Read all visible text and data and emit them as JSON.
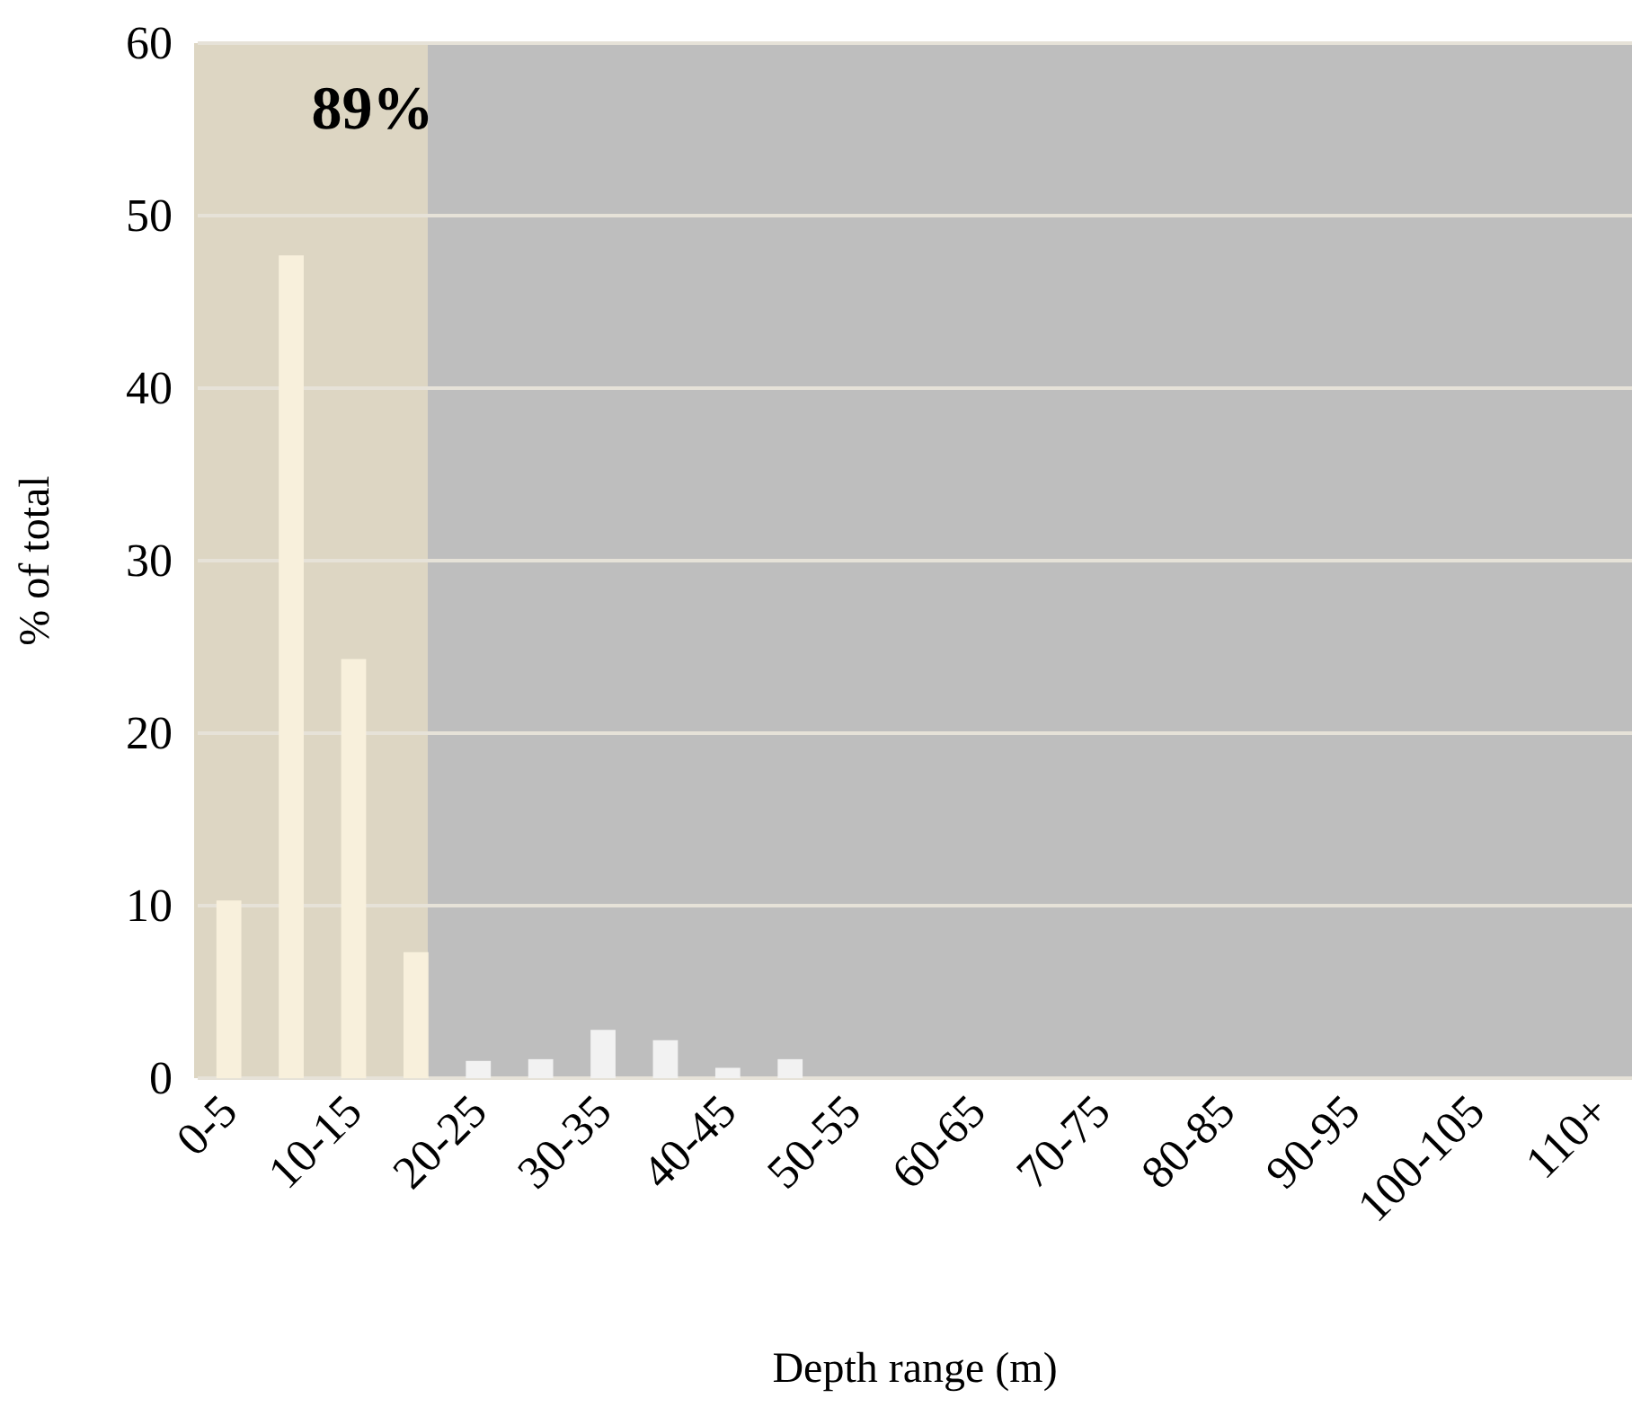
{
  "chart_data": {
    "type": "bar",
    "xlabel": "Depth range (m)",
    "ylabel": "% of total",
    "categories": [
      "0-5",
      null,
      "10-15",
      null,
      "20-25",
      null,
      "30-35",
      null,
      "40-45",
      null,
      "50-55",
      null,
      "60-65",
      null,
      "70-75",
      null,
      "80-85",
      null,
      "90-95",
      null,
      "100-105",
      null,
      "110+"
    ],
    "values": [
      10.3,
      47.7,
      24.3,
      7.3,
      1.0,
      1.1,
      2.8,
      2.2,
      0.6,
      1.1,
      0,
      0,
      0,
      0,
      0,
      0,
      0,
      0,
      0,
      0,
      null,
      0,
      0
    ],
    "colors": [
      "#f8f0dc",
      "#f8f0dc",
      "#f8f0dc",
      "#f8f0dc",
      "#f2f2f2",
      "#f2f2f2",
      "#f2f2f2",
      "#f2f2f2",
      "#f2f2f2",
      "#f2f2f2",
      "#f2f2f2",
      "#f2f2f2",
      "#f2f2f2",
      "#f2f2f2",
      "#f2f2f2",
      "#f2f2f2",
      "#f2f2f2",
      "#f2f2f2",
      "#f2f2f2",
      "#f2f2f2",
      "#f2f2f2",
      "#f2f2f2",
      "#f2f2f2"
    ],
    "ylim": [
      0,
      60
    ],
    "yticks": [
      0,
      10,
      20,
      30,
      40,
      50,
      60
    ],
    "grid": "y",
    "annotations": [
      "89%"
    ]
  }
}
